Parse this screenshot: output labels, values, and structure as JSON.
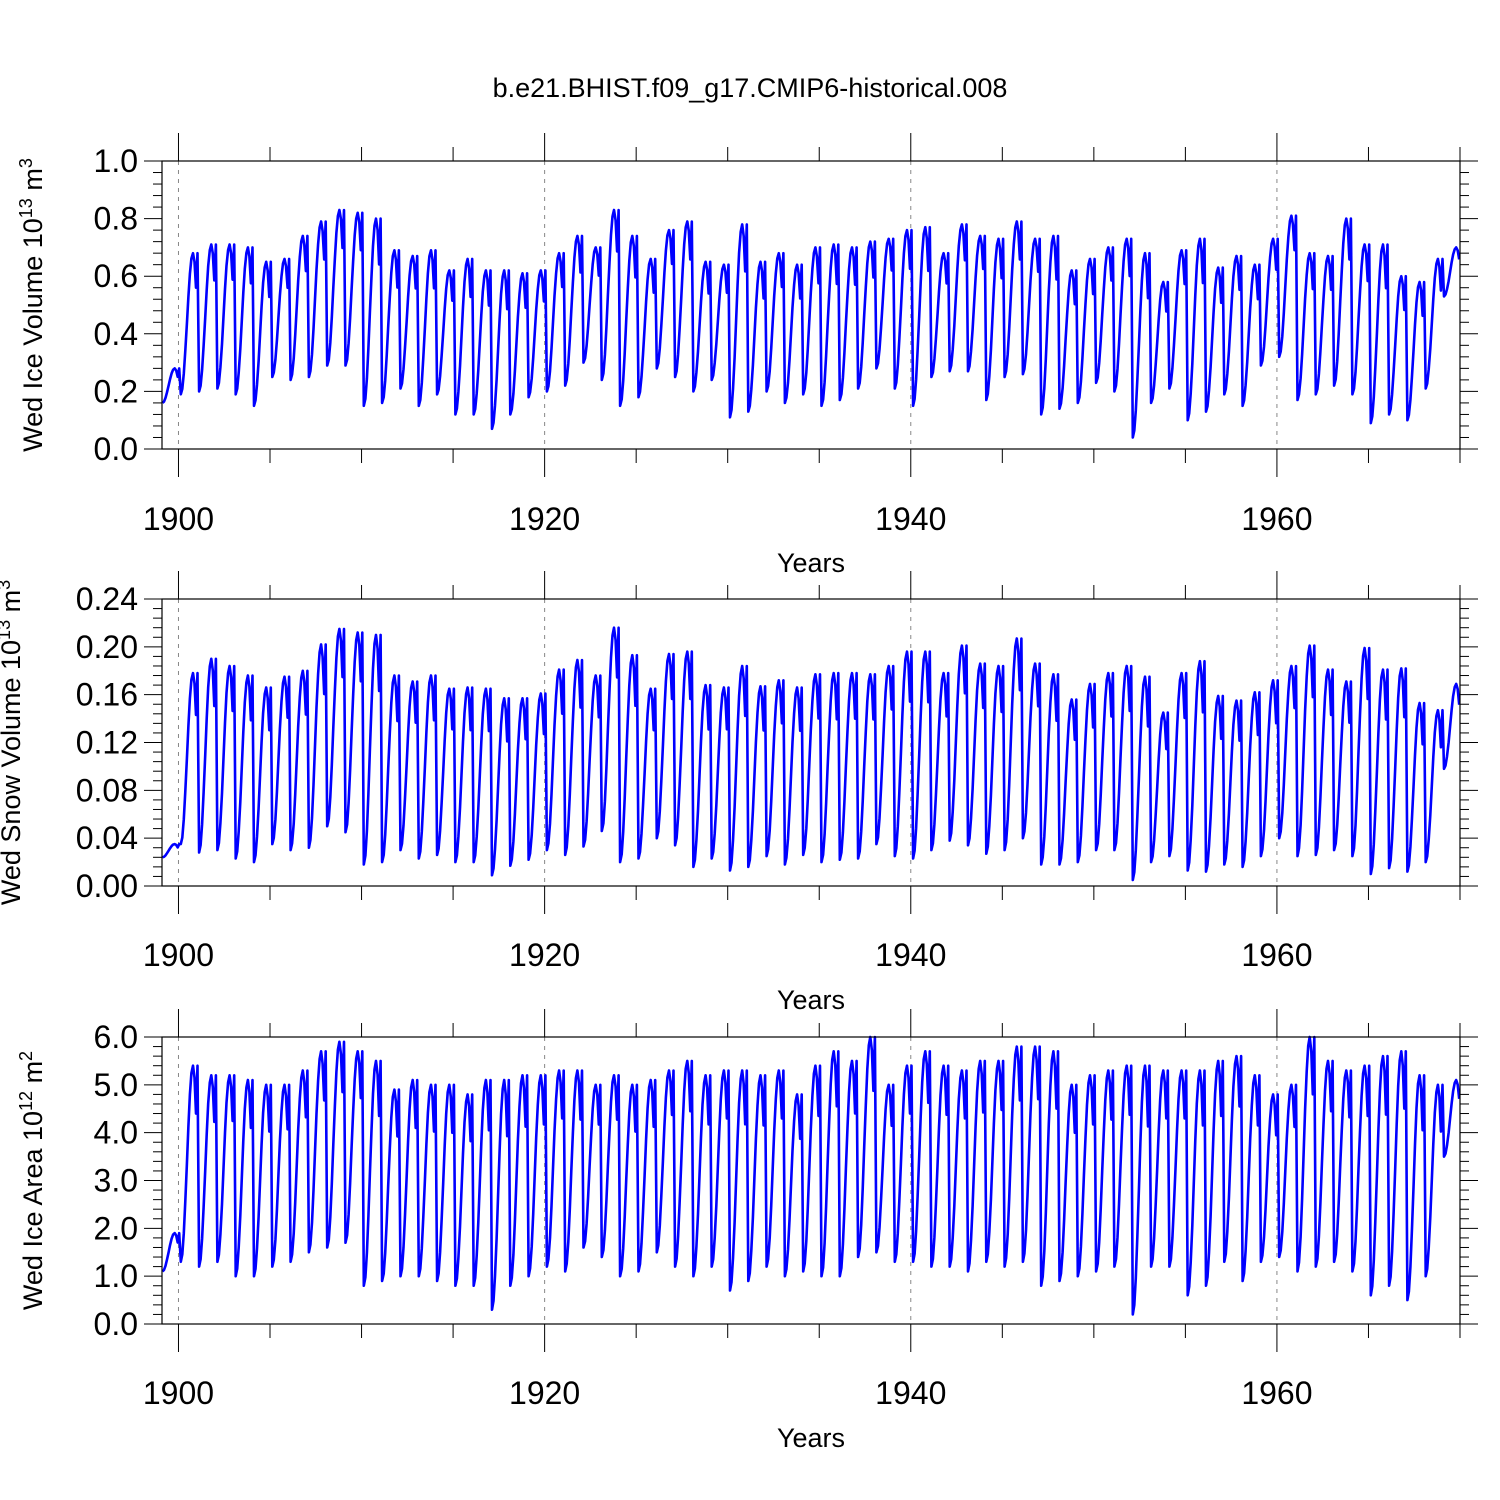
{
  "title": "b.e21.BHIST.f09_g17.CMIP6-historical.008",
  "colors": {
    "line": "#0000ff",
    "axis": "#000000",
    "grid": "#888888"
  },
  "chart_data": [
    {
      "type": "line",
      "xlabel": "Years",
      "ylabel": "Wed Ice Volume 10",
      "ylabel_exp": "13",
      "ylabel_unit": " m",
      "ylabel_unit_exp": "3",
      "xlim": [
        1899.1,
        1970.0
      ],
      "ylim": [
        0.0,
        1.0
      ],
      "yticks": [
        0.0,
        0.2,
        0.4,
        0.6,
        0.8,
        1.0
      ],
      "ytick_labels": [
        "0.0",
        "0.2",
        "0.4",
        "0.6",
        "0.8",
        "1.0"
      ],
      "xticks": [
        1900,
        1920,
        1940,
        1960
      ],
      "xtick_labels": [
        "1900",
        "1920",
        "1940",
        "1960"
      ],
      "grid": "dashed vertical at major x ticks",
      "series": [
        {
          "name": "Wed Ice Volume",
          "start_year": 1899,
          "annual_max": [
            0.28,
            0.68,
            0.71,
            0.71,
            0.7,
            0.65,
            0.66,
            0.74,
            0.79,
            0.83,
            0.82,
            0.8,
            0.69,
            0.67,
            0.69,
            0.62,
            0.66,
            0.62,
            0.62,
            0.61,
            0.62,
            0.68,
            0.74,
            0.7,
            0.83,
            0.74,
            0.66,
            0.76,
            0.79,
            0.65,
            0.64,
            0.78,
            0.65,
            0.68,
            0.64,
            0.7,
            0.71,
            0.7,
            0.72,
            0.73,
            0.76,
            0.77,
            0.68,
            0.78,
            0.74,
            0.73,
            0.79,
            0.73,
            0.74,
            0.62,
            0.66,
            0.7,
            0.73,
            0.68,
            0.58,
            0.69,
            0.73,
            0.63,
            0.67,
            0.64,
            0.73,
            0.81,
            0.68,
            0.67,
            0.8,
            0.71,
            0.71,
            0.6,
            0.58,
            0.66,
            0.7
          ],
          "annual_min": [
            0.16,
            0.19,
            0.2,
            0.21,
            0.19,
            0.15,
            0.25,
            0.24,
            0.25,
            0.29,
            0.29,
            0.15,
            0.16,
            0.21,
            0.15,
            0.19,
            0.12,
            0.12,
            0.07,
            0.12,
            0.18,
            0.2,
            0.22,
            0.3,
            0.24,
            0.15,
            0.18,
            0.28,
            0.25,
            0.2,
            0.24,
            0.11,
            0.13,
            0.2,
            0.16,
            0.19,
            0.15,
            0.17,
            0.21,
            0.28,
            0.21,
            0.15,
            0.25,
            0.27,
            0.27,
            0.17,
            0.25,
            0.26,
            0.12,
            0.14,
            0.16,
            0.23,
            0.2,
            0.04,
            0.16,
            0.21,
            0.1,
            0.13,
            0.19,
            0.15,
            0.29,
            0.32,
            0.17,
            0.19,
            0.22,
            0.19,
            0.09,
            0.12,
            0.1,
            0.21,
            0.53
          ]
        }
      ]
    },
    {
      "type": "line",
      "xlabel": "Years",
      "ylabel": "Wed Snow Volume 10",
      "ylabel_exp": "13",
      "ylabel_unit": " m",
      "ylabel_unit_exp": "3",
      "xlim": [
        1899.1,
        1970.0
      ],
      "ylim": [
        0.0,
        0.24
      ],
      "yticks": [
        0.0,
        0.04,
        0.08,
        0.12,
        0.16,
        0.2,
        0.24
      ],
      "ytick_labels": [
        "0.00",
        "0.04",
        "0.08",
        "0.12",
        "0.16",
        "0.20",
        "0.24"
      ],
      "xticks": [
        1900,
        1920,
        1940,
        1960
      ],
      "xtick_labels": [
        "1900",
        "1920",
        "1940",
        "1960"
      ],
      "grid": "dashed vertical at major x ticks",
      "series": [
        {
          "name": "Wed Snow Volume",
          "start_year": 1899,
          "annual_max": [
            0.035,
            0.178,
            0.19,
            0.184,
            0.176,
            0.166,
            0.175,
            0.18,
            0.202,
            0.215,
            0.212,
            0.21,
            0.176,
            0.171,
            0.176,
            0.165,
            0.166,
            0.165,
            0.157,
            0.157,
            0.161,
            0.181,
            0.189,
            0.176,
            0.216,
            0.193,
            0.165,
            0.194,
            0.196,
            0.168,
            0.166,
            0.184,
            0.167,
            0.172,
            0.166,
            0.177,
            0.178,
            0.178,
            0.177,
            0.184,
            0.196,
            0.196,
            0.178,
            0.201,
            0.186,
            0.184,
            0.207,
            0.186,
            0.177,
            0.156,
            0.169,
            0.178,
            0.184,
            0.175,
            0.145,
            0.178,
            0.188,
            0.159,
            0.155,
            0.162,
            0.172,
            0.184,
            0.201,
            0.181,
            0.171,
            0.199,
            0.181,
            0.182,
            0.153,
            0.147,
            0.169
          ],
          "annual_min": [
            0.024,
            0.035,
            0.028,
            0.03,
            0.023,
            0.02,
            0.035,
            0.03,
            0.032,
            0.05,
            0.045,
            0.018,
            0.02,
            0.03,
            0.023,
            0.026,
            0.02,
            0.02,
            0.009,
            0.017,
            0.022,
            0.03,
            0.026,
            0.033,
            0.046,
            0.02,
            0.023,
            0.04,
            0.034,
            0.016,
            0.023,
            0.013,
            0.016,
            0.025,
            0.018,
            0.026,
            0.02,
            0.022,
            0.023,
            0.035,
            0.025,
            0.023,
            0.03,
            0.038,
            0.034,
            0.027,
            0.03,
            0.04,
            0.018,
            0.018,
            0.02,
            0.03,
            0.03,
            0.005,
            0.02,
            0.025,
            0.013,
            0.012,
            0.018,
            0.016,
            0.025,
            0.04,
            0.025,
            0.026,
            0.03,
            0.025,
            0.01,
            0.015,
            0.012,
            0.02,
            0.098
          ]
        }
      ]
    },
    {
      "type": "line",
      "xlabel": "Years",
      "ylabel": "Wed Ice Area 10",
      "ylabel_exp": "12",
      "ylabel_unit": " m",
      "ylabel_unit_exp": "2",
      "xlim": [
        1899.1,
        1970.0
      ],
      "ylim": [
        0.0,
        6.0
      ],
      "yticks": [
        0.0,
        1.0,
        2.0,
        3.0,
        4.0,
        5.0,
        6.0
      ],
      "ytick_labels": [
        "0.0",
        "1.0",
        "2.0",
        "3.0",
        "4.0",
        "5.0",
        "6.0"
      ],
      "xticks": [
        1900,
        1920,
        1940,
        1960
      ],
      "xtick_labels": [
        "1900",
        "1920",
        "1940",
        "1960"
      ],
      "grid": "dashed vertical at major x ticks",
      "series": [
        {
          "name": "Wed Ice Area",
          "start_year": 1899,
          "annual_max": [
            1.9,
            5.4,
            5.2,
            5.2,
            5.1,
            5.0,
            5.0,
            5.3,
            5.7,
            5.9,
            5.7,
            5.5,
            4.9,
            5.1,
            5.0,
            5.0,
            4.8,
            5.1,
            5.1,
            5.2,
            5.2,
            5.3,
            5.3,
            5.0,
            5.2,
            5.0,
            5.1,
            5.3,
            5.5,
            5.2,
            5.3,
            5.3,
            5.2,
            5.3,
            4.8,
            5.4,
            5.7,
            5.5,
            6.0,
            5.0,
            5.4,
            5.7,
            5.4,
            5.3,
            5.5,
            5.5,
            5.8,
            5.8,
            5.7,
            5.0,
            5.2,
            5.3,
            5.4,
            5.4,
            5.3,
            5.3,
            5.3,
            5.5,
            5.6,
            5.2,
            4.8,
            5.0,
            6.0,
            5.5,
            5.3,
            5.4,
            5.6,
            5.7,
            5.2,
            5.0,
            5.1
          ],
          "annual_min": [
            1.1,
            1.3,
            1.2,
            1.3,
            1.0,
            1.0,
            1.2,
            1.3,
            1.5,
            1.6,
            1.7,
            0.8,
            0.9,
            1.0,
            1.0,
            0.9,
            0.8,
            0.8,
            0.3,
            0.8,
            1.0,
            1.2,
            1.1,
            1.6,
            1.4,
            1.0,
            1.1,
            1.5,
            1.2,
            1.0,
            1.2,
            0.7,
            0.9,
            1.2,
            1.0,
            1.1,
            1.0,
            1.0,
            1.4,
            1.5,
            1.3,
            1.3,
            1.2,
            1.2,
            1.1,
            1.3,
            1.2,
            1.3,
            0.8,
            0.9,
            1.0,
            1.1,
            1.2,
            0.2,
            1.2,
            1.2,
            0.6,
            0.8,
            1.3,
            0.9,
            1.3,
            1.4,
            1.1,
            1.2,
            1.3,
            1.1,
            0.6,
            0.8,
            0.5,
            1.0,
            3.5
          ]
        }
      ]
    }
  ]
}
